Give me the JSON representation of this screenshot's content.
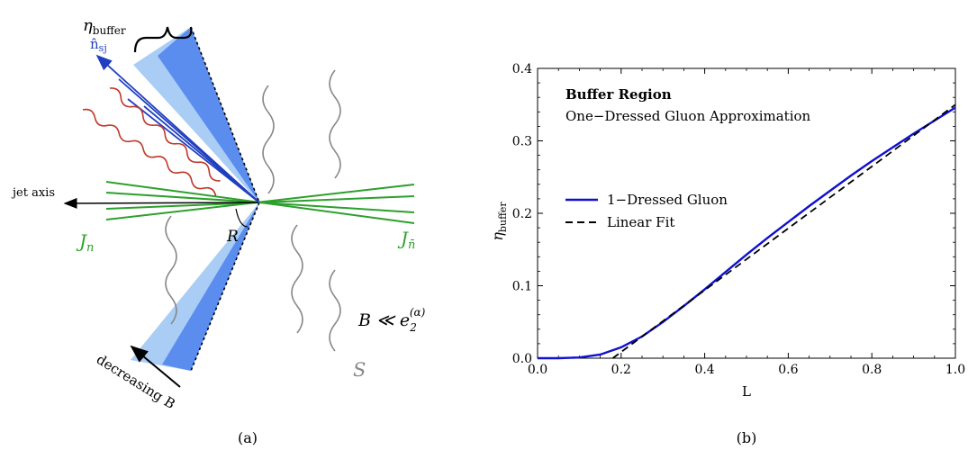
{
  "diagram": {
    "eta_buffer_label": "η",
    "eta_buffer_sub": "buffer",
    "subjet_label": "n̂",
    "subjet_sub": "sj",
    "jet_axis_label": "jet axis",
    "jn_label": "J",
    "jn_sub": "n",
    "jnbar_label": "J",
    "jnbar_sub": "n̄",
    "r_label": "R",
    "constraint_label": "B ≪ e",
    "constraint_sub": "2",
    "constraint_sup": "(α)",
    "soft_label": "S",
    "decreasing_label": "decreasing B",
    "colors": {
      "green": "#2ca02c",
      "red": "#c0392b",
      "blue": "#1f3fbf",
      "light_blue": "#a9cdf5",
      "mid_blue": "#5b8def",
      "gray": "#888888"
    }
  },
  "panel_labels": {
    "a": "(a)",
    "b": "(b)"
  },
  "chart_data": {
    "type": "line",
    "title": "Buffer Region",
    "subtitle": "One−Dressed Gluon Approximation",
    "xlabel": "L",
    "ylabel_main": "η",
    "ylabel_sub": "buffer",
    "xlim": [
      0.0,
      1.0
    ],
    "ylim": [
      0.0,
      0.4
    ],
    "xticks": [
      "0.0",
      "0.2",
      "0.4",
      "0.6",
      "0.8",
      "1.0"
    ],
    "yticks": [
      "0.0",
      "0.1",
      "0.2",
      "0.3",
      "0.4"
    ],
    "legend_position": "middle-left",
    "series": [
      {
        "name": "1−Dressed Gluon",
        "color": "#1010d0",
        "style": "solid",
        "x": [
          0.0,
          0.05,
          0.1,
          0.15,
          0.2,
          0.25,
          0.3,
          0.35,
          0.4,
          0.45,
          0.5,
          0.55,
          0.6,
          0.65,
          0.7,
          0.75,
          0.8,
          0.85,
          0.9,
          0.95,
          1.0
        ],
        "y": [
          0.0,
          0.0,
          0.001,
          0.005,
          0.015,
          0.03,
          0.05,
          0.072,
          0.095,
          0.119,
          0.143,
          0.166,
          0.188,
          0.21,
          0.231,
          0.252,
          0.272,
          0.291,
          0.31,
          0.328,
          0.346
        ]
      },
      {
        "name": "Linear Fit",
        "color": "#000000",
        "style": "dashed",
        "x": [
          0.18,
          1.0
        ],
        "y": [
          0.0,
          0.35
        ]
      }
    ]
  }
}
